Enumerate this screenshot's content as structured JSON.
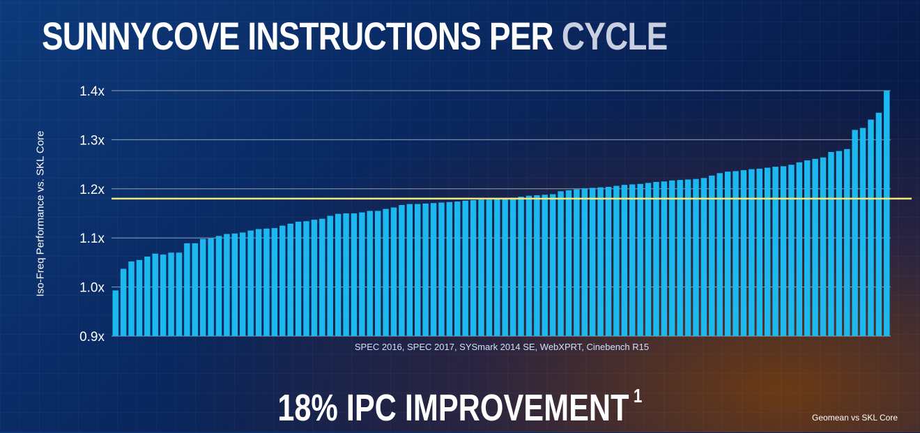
{
  "title": {
    "main": "SUNNYCOVE INSTRUCTIONS PER ",
    "accent": "CYCLE"
  },
  "headline": {
    "text": "18% IPC IMPROVEMENT",
    "superscript": "1"
  },
  "footnote": "Geomean vs SKL Core",
  "colors": {
    "bar": "#1cb8f0",
    "reference_line": "#f3e97a",
    "gridline": "#ffffff"
  },
  "chart_data": {
    "type": "bar",
    "ylabel": "Iso-Freq Performance vs. SKL Core",
    "xlabel": "SPEC 2016, SPEC 2017, SYSmark 2014 SE, WebXPRT, Cinebench R15",
    "ylim": [
      0.9,
      1.4
    ],
    "yticks": [
      0.9,
      1.0,
      1.1,
      1.2,
      1.3,
      1.4
    ],
    "ytick_labels": [
      "0.9x",
      "1.0x",
      "1.1x",
      "1.2x",
      "1.3x",
      "1.4x"
    ],
    "grid": true,
    "reference_line": 1.18,
    "values": [
      0.993,
      1.037,
      1.052,
      1.055,
      1.062,
      1.068,
      1.066,
      1.07,
      1.07,
      1.089,
      1.089,
      1.098,
      1.099,
      1.104,
      1.108,
      1.109,
      1.111,
      1.115,
      1.118,
      1.119,
      1.12,
      1.125,
      1.129,
      1.133,
      1.134,
      1.137,
      1.139,
      1.145,
      1.149,
      1.15,
      1.15,
      1.152,
      1.155,
      1.155,
      1.159,
      1.162,
      1.167,
      1.169,
      1.169,
      1.17,
      1.171,
      1.172,
      1.173,
      1.174,
      1.176,
      1.177,
      1.178,
      1.178,
      1.18,
      1.181,
      1.182,
      1.184,
      1.186,
      1.187,
      1.188,
      1.189,
      1.195,
      1.197,
      1.199,
      1.201,
      1.202,
      1.203,
      1.204,
      1.206,
      1.208,
      1.209,
      1.21,
      1.212,
      1.214,
      1.215,
      1.217,
      1.218,
      1.219,
      1.22,
      1.222,
      1.227,
      1.232,
      1.235,
      1.236,
      1.238,
      1.24,
      1.241,
      1.243,
      1.245,
      1.246,
      1.249,
      1.254,
      1.258,
      1.261,
      1.264,
      1.275,
      1.277,
      1.281,
      1.32,
      1.324,
      1.341,
      1.355,
      1.4
    ]
  }
}
